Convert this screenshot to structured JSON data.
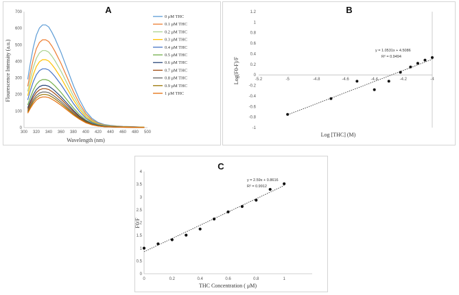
{
  "chart_data": [
    {
      "panel": "A",
      "type": "line",
      "xlabel": "Wavelength (nm)",
      "ylabel": "Flourescence Intensity (a.u.)",
      "xlim": [
        300,
        500
      ],
      "ylim": [
        0,
        700
      ],
      "xticks": [
        300,
        320,
        340,
        360,
        380,
        400,
        420,
        440,
        460,
        480,
        500
      ],
      "yticks": [
        0,
        100,
        200,
        300,
        400,
        500,
        600,
        700
      ],
      "legend_position": "right",
      "x": [
        306,
        310,
        315,
        320,
        325,
        330,
        335,
        340,
        345,
        350,
        360,
        370,
        380,
        390,
        400,
        410,
        420,
        430,
        440,
        450,
        460,
        470,
        480,
        495
      ],
      "series": [
        {
          "name": "0 μM THC",
          "color": "#5b9bd5",
          "peak": 620
        },
        {
          "name": "0.1 μM THC",
          "color": "#ed7d31",
          "peak": 530
        },
        {
          "name": "0.2 μM THC",
          "color": "#a9d18e",
          "peak": 465
        },
        {
          "name": "0.3 μM THC",
          "color": "#ffc000",
          "peak": 410
        },
        {
          "name": "0.4 μM THC",
          "color": "#4472c4",
          "peak": 355
        },
        {
          "name": "0.5 μM THC",
          "color": "#70ad47",
          "peak": 290
        },
        {
          "name": "0.6 μM THC",
          "color": "#264478",
          "peak": 255
        },
        {
          "name": "0.7 μM THC",
          "color": "#9e480e",
          "peak": 235
        },
        {
          "name": "0.8 μM THC",
          "color": "#636363",
          "peak": 215
        },
        {
          "name": "0.9 μM THC",
          "color": "#997300",
          "peak": 200
        },
        {
          "name": "1  μM THC",
          "color": "#e46c0a",
          "peak": 185
        }
      ],
      "profile": [
        0.47,
        0.62,
        0.78,
        0.9,
        0.97,
        1.0,
        1.0,
        0.98,
        0.93,
        0.87,
        0.73,
        0.57,
        0.41,
        0.27,
        0.16,
        0.09,
        0.05,
        0.03,
        0.022,
        0.016,
        0.012,
        0.01,
        0.008,
        0.005
      ]
    },
    {
      "panel": "B",
      "type": "scatter",
      "xlabel": "Log [THC] (M)",
      "ylabel": "Log(F0-F)/F",
      "xlim": [
        -5.2,
        -4
      ],
      "ylim": [
        -1,
        1.2
      ],
      "xticks": [
        -5.2,
        -5,
        -4.8,
        -4.6,
        -4.4,
        -4.2,
        -4
      ],
      "yticks": [
        -1,
        -0.8,
        -0.6,
        -0.4,
        -0.2,
        0,
        0.2,
        0.4,
        0.6,
        0.8,
        1,
        1.2
      ],
      "points": [
        {
          "x": -5.0,
          "y": -0.75
        },
        {
          "x": -4.7,
          "y": -0.45
        },
        {
          "x": -4.52,
          "y": -0.12
        },
        {
          "x": -4.4,
          "y": -0.28
        },
        {
          "x": -4.3,
          "y": -0.12
        },
        {
          "x": -4.22,
          "y": 0.05
        },
        {
          "x": -4.15,
          "y": 0.15
        },
        {
          "x": -4.1,
          "y": 0.22
        },
        {
          "x": -4.05,
          "y": 0.28
        },
        {
          "x": -4.0,
          "y": 0.33
        }
      ],
      "trendline": {
        "slope": 1.0531,
        "intercept": 4.5086
      },
      "equation": "y = 1.0531x + 4.5086",
      "r2": "R² = 0.9494"
    },
    {
      "panel": "C",
      "type": "scatter",
      "xlabel": "THC Concentration ( μM)",
      "ylabel": "F0/F",
      "xlim": [
        0,
        1.2
      ],
      "ylim": [
        0,
        4
      ],
      "xticks": [
        0,
        0.2,
        0.4,
        0.6,
        0.8,
        1
      ],
      "yticks": [
        0,
        0.5,
        1,
        1.5,
        2,
        2.5,
        3,
        3.5,
        4
      ],
      "points": [
        {
          "x": 0,
          "y": 1.0
        },
        {
          "x": 0.1,
          "y": 1.17
        },
        {
          "x": 0.2,
          "y": 1.33
        },
        {
          "x": 0.3,
          "y": 1.51
        },
        {
          "x": 0.4,
          "y": 1.75
        },
        {
          "x": 0.5,
          "y": 2.14
        },
        {
          "x": 0.6,
          "y": 2.42
        },
        {
          "x": 0.7,
          "y": 2.63
        },
        {
          "x": 0.8,
          "y": 2.88
        },
        {
          "x": 0.9,
          "y": 3.3
        },
        {
          "x": 1.0,
          "y": 3.52
        }
      ],
      "trendline": {
        "slope": 2.59,
        "intercept": 0.8616
      },
      "equation": "y = 2.59x + 0.8616",
      "r2": "R² = 0.9912"
    }
  ],
  "labels": {
    "A": "A",
    "B": "B",
    "C": "C"
  }
}
